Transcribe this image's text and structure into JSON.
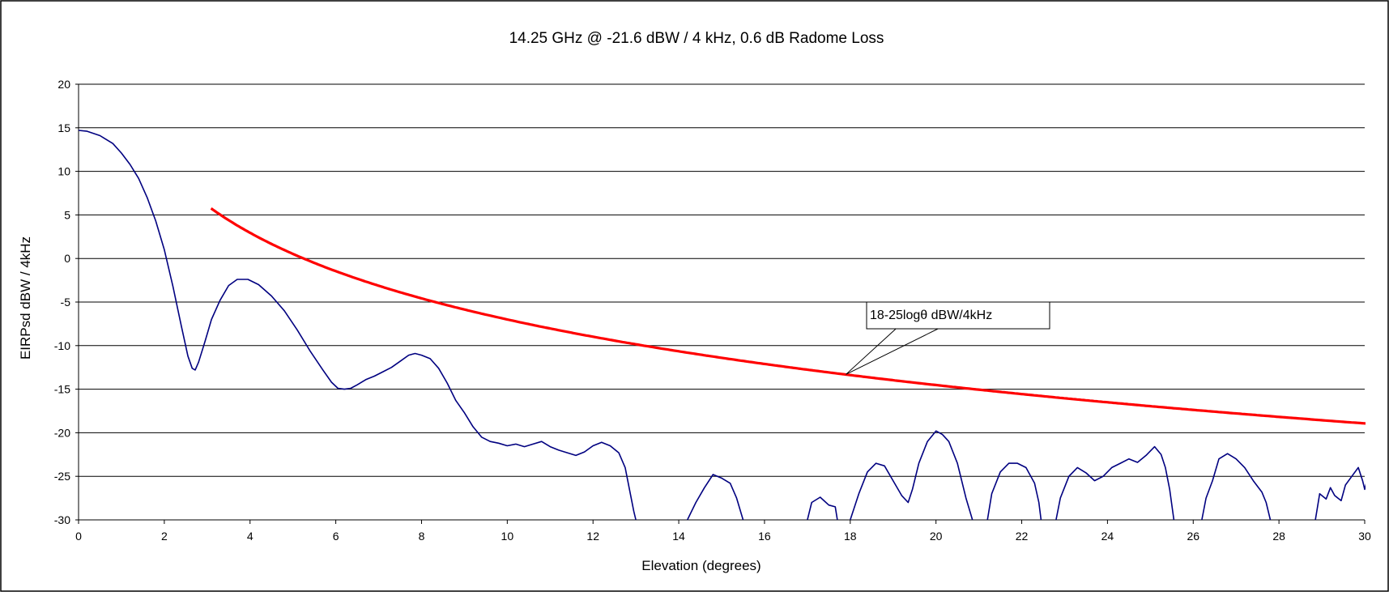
{
  "chart_data": {
    "type": "line",
    "title": "14.25 GHz @ -21.6 dBW / 4 kHz, 0.6 dB Radome Loss",
    "xlabel": "Elevation (degrees)",
    "ylabel": "EIRPsd dBW / 4kHz",
    "xlim": [
      0,
      30
    ],
    "ylim": [
      -30,
      20
    ],
    "xticks": [
      0,
      2,
      4,
      6,
      8,
      10,
      12,
      14,
      16,
      18,
      20,
      22,
      24,
      26,
      28,
      30
    ],
    "yticks": [
      -30,
      -25,
      -20,
      -15,
      -10,
      -5,
      0,
      5,
      10,
      15,
      20
    ],
    "grid": "horizontal",
    "legend": "none",
    "annotations": [
      {
        "text": "18-25logθ dBW/4kHz",
        "points_to": [
          17.9,
          -13.3
        ]
      }
    ],
    "series": [
      {
        "color": "#000080",
        "segments": [
          [
            [
              0,
              14.7
            ],
            [
              0.2,
              14.6
            ],
            [
              0.5,
              14.1
            ],
            [
              0.8,
              13.2
            ],
            [
              1.0,
              12.1
            ],
            [
              1.2,
              10.8
            ],
            [
              1.4,
              9.2
            ],
            [
              1.6,
              7.0
            ],
            [
              1.8,
              4.3
            ],
            [
              2.0,
              1.0
            ],
            [
              2.2,
              -3.2
            ],
            [
              2.4,
              -7.8
            ],
            [
              2.55,
              -11.2
            ],
            [
              2.65,
              -12.6
            ],
            [
              2.72,
              -12.8
            ],
            [
              2.8,
              -11.9
            ],
            [
              2.95,
              -9.5
            ],
            [
              3.1,
              -7.0
            ],
            [
              3.3,
              -4.8
            ],
            [
              3.5,
              -3.1
            ],
            [
              3.7,
              -2.4
            ],
            [
              3.95,
              -2.4
            ],
            [
              4.2,
              -3.0
            ],
            [
              4.5,
              -4.3
            ],
            [
              4.8,
              -6.0
            ],
            [
              5.1,
              -8.2
            ],
            [
              5.4,
              -10.6
            ],
            [
              5.7,
              -12.8
            ],
            [
              5.9,
              -14.2
            ],
            [
              6.05,
              -14.9
            ],
            [
              6.2,
              -15.0
            ],
            [
              6.35,
              -14.9
            ],
            [
              6.5,
              -14.5
            ],
            [
              6.7,
              -13.9
            ],
            [
              6.9,
              -13.5
            ],
            [
              7.1,
              -13.0
            ],
            [
              7.3,
              -12.5
            ],
            [
              7.5,
              -11.8
            ],
            [
              7.7,
              -11.1
            ],
            [
              7.85,
              -10.9
            ],
            [
              8.0,
              -11.1
            ],
            [
              8.2,
              -11.5
            ],
            [
              8.4,
              -12.6
            ],
            [
              8.6,
              -14.3
            ],
            [
              8.8,
              -16.3
            ],
            [
              9.0,
              -17.7
            ],
            [
              9.2,
              -19.3
            ],
            [
              9.4,
              -20.5
            ],
            [
              9.6,
              -21.0
            ],
            [
              9.8,
              -21.2
            ],
            [
              10.0,
              -21.5
            ],
            [
              10.2,
              -21.3
            ],
            [
              10.4,
              -21.6
            ],
            [
              10.6,
              -21.3
            ],
            [
              10.8,
              -21.0
            ],
            [
              11.0,
              -21.6
            ],
            [
              11.2,
              -22.0
            ],
            [
              11.4,
              -22.3
            ],
            [
              11.6,
              -22.6
            ],
            [
              11.8,
              -22.2
            ],
            [
              12.0,
              -21.5
            ],
            [
              12.2,
              -21.1
            ],
            [
              12.4,
              -21.5
            ],
            [
              12.6,
              -22.3
            ],
            [
              12.75,
              -24.0
            ],
            [
              12.85,
              -26.5
            ],
            [
              12.95,
              -29.0
            ],
            [
              13.0,
              -30.0
            ]
          ],
          [
            [
              14.2,
              -30
            ],
            [
              14.4,
              -28.0
            ],
            [
              14.6,
              -26.3
            ],
            [
              14.8,
              -24.8
            ],
            [
              15.0,
              -25.2
            ],
            [
              15.2,
              -25.8
            ],
            [
              15.35,
              -27.5
            ],
            [
              15.5,
              -30
            ]
          ],
          [
            [
              17.0,
              -30
            ],
            [
              17.1,
              -28.0
            ],
            [
              17.3,
              -27.4
            ],
            [
              17.5,
              -28.3
            ],
            [
              17.65,
              -28.5
            ],
            [
              17.7,
              -30
            ]
          ],
          [
            [
              18.0,
              -30
            ],
            [
              18.2,
              -27.0
            ],
            [
              18.4,
              -24.5
            ],
            [
              18.6,
              -23.5
            ],
            [
              18.8,
              -23.8
            ],
            [
              19.0,
              -25.5
            ],
            [
              19.2,
              -27.2
            ],
            [
              19.35,
              -28.0
            ],
            [
              19.45,
              -26.5
            ],
            [
              19.6,
              -23.5
            ],
            [
              19.8,
              -21.0
            ],
            [
              20.0,
              -19.8
            ],
            [
              20.15,
              -20.2
            ],
            [
              20.3,
              -21.0
            ],
            [
              20.5,
              -23.5
            ],
            [
              20.7,
              -27.5
            ],
            [
              20.85,
              -30
            ]
          ],
          [
            [
              21.2,
              -30
            ],
            [
              21.3,
              -27.0
            ],
            [
              21.5,
              -24.5
            ],
            [
              21.7,
              -23.5
            ],
            [
              21.9,
              -23.5
            ],
            [
              22.1,
              -24.0
            ],
            [
              22.3,
              -25.8
            ],
            [
              22.4,
              -28.0
            ],
            [
              22.45,
              -30
            ]
          ],
          [
            [
              22.8,
              -30
            ],
            [
              22.9,
              -27.5
            ],
            [
              23.1,
              -25.0
            ],
            [
              23.3,
              -24.0
            ],
            [
              23.5,
              -24.6
            ],
            [
              23.7,
              -25.5
            ],
            [
              23.9,
              -25.0
            ],
            [
              24.1,
              -24.0
            ],
            [
              24.3,
              -23.5
            ],
            [
              24.5,
              -23.0
            ],
            [
              24.7,
              -23.4
            ],
            [
              24.9,
              -22.6
            ],
            [
              25.1,
              -21.6
            ],
            [
              25.25,
              -22.5
            ],
            [
              25.35,
              -24.0
            ],
            [
              25.45,
              -26.5
            ],
            [
              25.55,
              -30
            ]
          ],
          [
            [
              26.2,
              -30
            ],
            [
              26.3,
              -27.5
            ],
            [
              26.45,
              -25.5
            ],
            [
              26.6,
              -23.0
            ],
            [
              26.8,
              -22.4
            ],
            [
              27.0,
              -23.0
            ],
            [
              27.2,
              -24.0
            ],
            [
              27.4,
              -25.5
            ],
            [
              27.6,
              -26.8
            ],
            [
              27.7,
              -28.0
            ],
            [
              27.8,
              -30
            ]
          ],
          [
            [
              28.85,
              -30
            ],
            [
              28.95,
              -27.0
            ],
            [
              29.1,
              -27.6
            ],
            [
              29.2,
              -26.3
            ],
            [
              29.3,
              -27.2
            ],
            [
              29.45,
              -27.8
            ],
            [
              29.55,
              -26.0
            ],
            [
              29.7,
              -25.0
            ],
            [
              29.85,
              -24.0
            ],
            [
              29.95,
              -25.5
            ],
            [
              30.0,
              -26.5
            ],
            [
              30.1,
              -24.5
            ],
            [
              30.2,
              -25.3
            ],
            [
              30.3,
              -26.5
            ],
            [
              30.4,
              -27.0
            ],
            [
              30.5,
              -28.5
            ]
          ]
        ]
      },
      {
        "name": "18-25logθ dBW/4kHz",
        "color": "#ff0000",
        "formula": "18-25log10(x)",
        "x_range": [
          3.09,
          30.5
        ]
      }
    ]
  }
}
